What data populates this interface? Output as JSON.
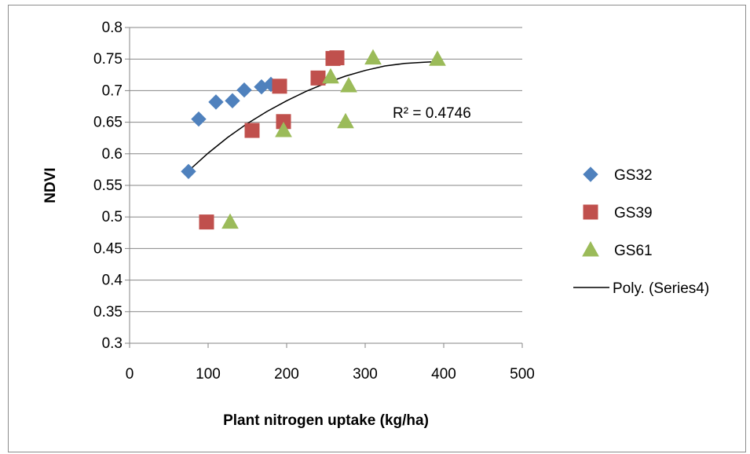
{
  "chart_data": {
    "type": "scatter",
    "xlabel": "Plant nitrogen uptake (kg/ha)",
    "ylabel": "NDVI",
    "xlim": [
      0,
      500
    ],
    "ylim": [
      0.3,
      0.8
    ],
    "x_ticks": [
      "0",
      "100",
      "200",
      "300",
      "400",
      "500"
    ],
    "y_ticks": [
      "0.3",
      "0.35",
      "0.4",
      "0.45",
      "0.5",
      "0.55",
      "0.6",
      "0.65",
      "0.7",
      "0.75",
      "0.8"
    ],
    "grid": "horizontal",
    "legend_position": "right",
    "series": [
      {
        "name": "GS32",
        "marker": "diamond",
        "color": "#4f81bd",
        "points": [
          [
            75,
            0.572
          ],
          [
            88,
            0.655
          ],
          [
            110,
            0.682
          ],
          [
            131,
            0.684
          ],
          [
            146,
            0.701
          ],
          [
            168,
            0.706
          ],
          [
            180,
            0.71
          ]
        ]
      },
      {
        "name": "GS39",
        "marker": "square",
        "color": "#c0504d",
        "points": [
          [
            98,
            0.492
          ],
          [
            156,
            0.637
          ],
          [
            191,
            0.707
          ],
          [
            196,
            0.651
          ],
          [
            240,
            0.72
          ],
          [
            259,
            0.751
          ],
          [
            264,
            0.752
          ]
        ]
      },
      {
        "name": "GS61",
        "marker": "triangle",
        "color": "#9bbb59",
        "points": [
          [
            128,
            0.492
          ],
          [
            196,
            0.637
          ],
          [
            256,
            0.722
          ],
          [
            275,
            0.651
          ],
          [
            279,
            0.708
          ],
          [
            310,
            0.752
          ],
          [
            392,
            0.75
          ]
        ]
      }
    ],
    "trendline": {
      "name": "Poly. (Series4)",
      "color": "#000000",
      "points": [
        [
          75,
          0.573
        ],
        [
          100,
          0.601
        ],
        [
          125,
          0.626
        ],
        [
          150,
          0.648
        ],
        [
          175,
          0.667
        ],
        [
          200,
          0.684
        ],
        [
          225,
          0.699
        ],
        [
          250,
          0.712
        ],
        [
          275,
          0.723
        ],
        [
          300,
          0.732
        ],
        [
          325,
          0.739
        ],
        [
          350,
          0.743
        ],
        [
          375,
          0.745
        ],
        [
          392,
          0.746
        ]
      ]
    },
    "annotation": "R² = 0.4746"
  }
}
